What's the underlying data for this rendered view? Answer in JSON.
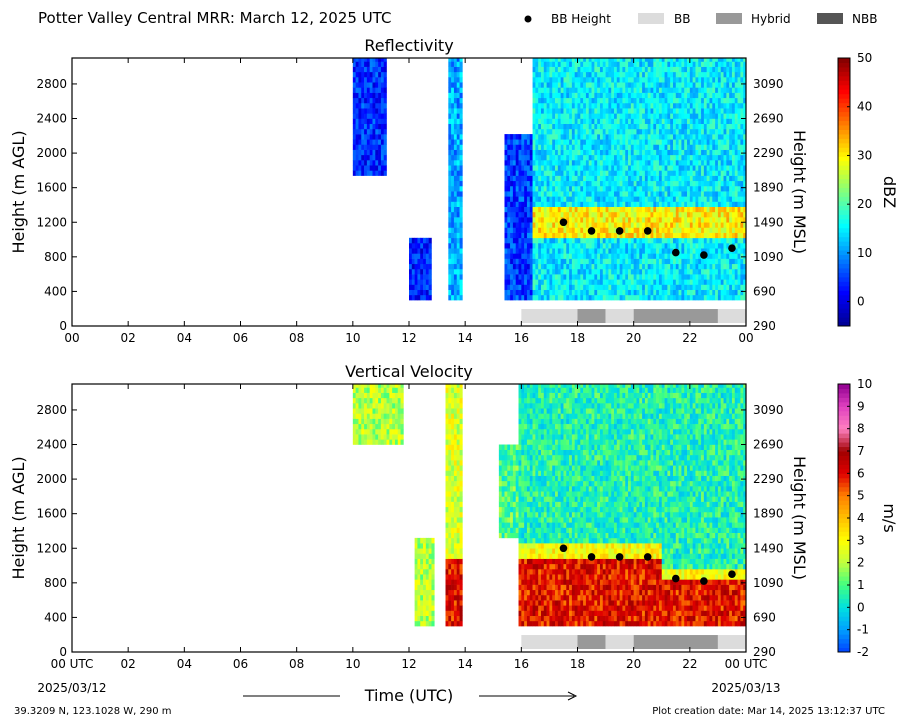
{
  "figure": {
    "title": "Potter Valley Central MRR:  March 12, 2025 UTC",
    "legend": {
      "items": [
        {
          "label": "BB Height",
          "kind": "dot",
          "color": "#000000"
        },
        {
          "label": "BB",
          "kind": "box",
          "color": "#dcdcdc"
        },
        {
          "label": "Hybrid",
          "kind": "box",
          "color": "#999999"
        },
        {
          "label": "NBB",
          "kind": "box",
          "color": "#555555"
        }
      ]
    },
    "footer_left": "39.3209 N, 123.1028 W, 290 m",
    "footer_right": "Plot creation date: Mar 14, 2025 13:12:37 UTC",
    "xlabel": "Time (UTC)",
    "date_start": "2025/03/12",
    "date_end": "2025/03/13"
  },
  "chart_data": [
    {
      "type": "heatmap",
      "title": "Reflectivity",
      "ylabel": "Height (m AGL)",
      "ylabel_right": "Height (m MSL)",
      "x_ticks": [
        "00",
        "02",
        "04",
        "06",
        "08",
        "10",
        "12",
        "14",
        "16",
        "18",
        "20",
        "22",
        "00"
      ],
      "xlim": [
        0,
        24
      ],
      "ylim": [
        0,
        3100
      ],
      "y_ticks": [
        0,
        400,
        800,
        1200,
        1600,
        2000,
        2400,
        2800
      ],
      "y_ticks_right": [
        "290",
        "690",
        "1090",
        "1490",
        "1890",
        "2290",
        "2690",
        "3090"
      ],
      "colorbar": {
        "label": "dBZ",
        "min": -5,
        "max": 50,
        "ticks": [
          0,
          10,
          20,
          30,
          40,
          50
        ],
        "colors": [
          "#00008f",
          "#0000ff",
          "#0080ff",
          "#00ffff",
          "#80ff80",
          "#ffff00",
          "#ff8000",
          "#ff0000",
          "#800000"
        ]
      },
      "bb_height": {
        "x": [
          17.5,
          18.5,
          19.5,
          20.5,
          21.5,
          22.5,
          23.5
        ],
        "y": [
          1200,
          1100,
          1100,
          1100,
          850,
          820,
          900
        ]
      },
      "bb_type_bar": [
        {
          "start": 16.0,
          "end": 18.0,
          "type": "BB"
        },
        {
          "start": 18.0,
          "end": 19.0,
          "type": "Hybrid"
        },
        {
          "start": 19.0,
          "end": 20.0,
          "type": "BB"
        },
        {
          "start": 20.0,
          "end": 23.0,
          "type": "Hybrid"
        },
        {
          "start": 23.0,
          "end": 24.0,
          "type": "BB"
        }
      ]
    },
    {
      "type": "heatmap",
      "title": "Vertical Velocity",
      "ylabel": "Height (m AGL)",
      "ylabel_right": "Height (m MSL)",
      "x_ticks": [
        "00 UTC",
        "02",
        "04",
        "06",
        "08",
        "10",
        "12",
        "14",
        "16",
        "18",
        "20",
        "22",
        "00 UTC"
      ],
      "xlim": [
        0,
        24
      ],
      "ylim": [
        0,
        3100
      ],
      "y_ticks": [
        0,
        400,
        800,
        1200,
        1600,
        2000,
        2400,
        2800
      ],
      "y_ticks_right": [
        "290",
        "690",
        "1090",
        "1490",
        "1890",
        "2290",
        "2690",
        "3090"
      ],
      "colorbar": {
        "label": "m/s",
        "min": -2,
        "max": 10,
        "ticks": [
          -2,
          -1,
          0,
          1,
          2,
          3,
          4,
          5,
          6,
          7,
          8,
          9,
          10
        ],
        "colors": [
          "#0040ff",
          "#00a0ff",
          "#00e0e0",
          "#40ff80",
          "#c0ff40",
          "#ffff00",
          "#ffc000",
          "#ff8000",
          "#e00000",
          "#a00000",
          "#ff80c0",
          "#e040c0",
          "#900090"
        ]
      },
      "bb_height": {
        "x": [
          17.5,
          18.5,
          19.5,
          20.5,
          21.5,
          22.5,
          23.5
        ],
        "y": [
          1200,
          1100,
          1100,
          1100,
          850,
          820,
          900
        ]
      },
      "bb_type_bar": [
        {
          "start": 16.0,
          "end": 18.0,
          "type": "BB"
        },
        {
          "start": 18.0,
          "end": 19.0,
          "type": "Hybrid"
        },
        {
          "start": 19.0,
          "end": 20.0,
          "type": "BB"
        },
        {
          "start": 20.0,
          "end": 23.0,
          "type": "Hybrid"
        },
        {
          "start": 23.0,
          "end": 24.0,
          "type": "BB"
        }
      ]
    }
  ]
}
